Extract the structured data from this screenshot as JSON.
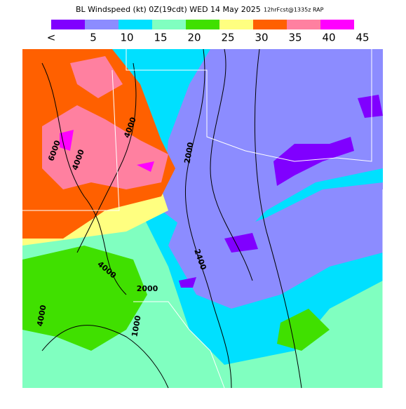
{
  "header": {
    "title": "BL Windspeed (kt) 0Z(19cdt) WED 14 May 2025",
    "subtitle": "12hrFcst@1335z RAP"
  },
  "legend": {
    "colors": [
      "#8000ff",
      "#8c8cff",
      "#00e0ff",
      "#80ffc0",
      "#40e000",
      "#ffff80",
      "#ff6000",
      "#ff80a0",
      "#ff00ff"
    ],
    "labels": [
      "<",
      "5",
      "10",
      "15",
      "20",
      "25",
      "30",
      "35",
      "40",
      "45"
    ]
  },
  "contour_labels": [
    "6000",
    "4000",
    "4000",
    "2000",
    "2400",
    "2000",
    "4000",
    "4000",
    "1000"
  ]
}
